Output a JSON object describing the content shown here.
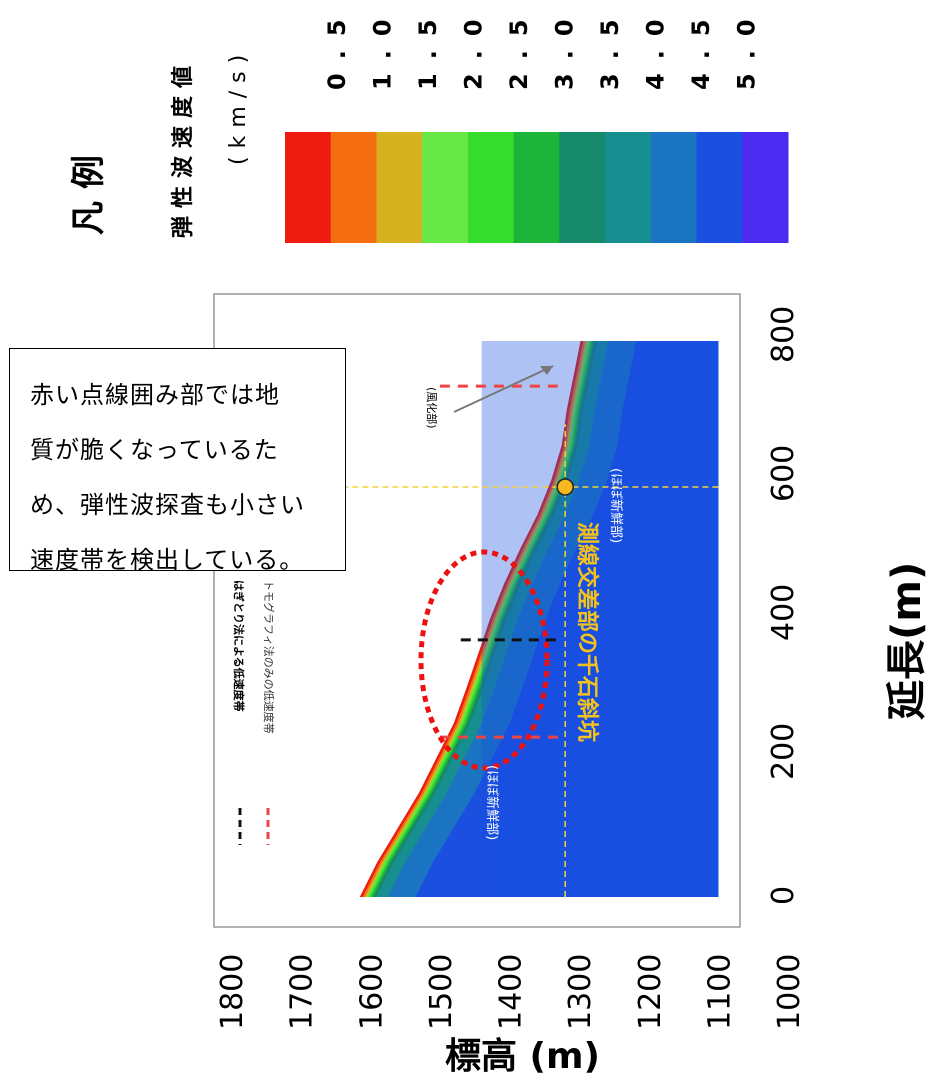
{
  "legend": {
    "title": "凡 例",
    "label": "弾性波速度値",
    "unit": "(km/s)",
    "values": [
      "0.5",
      "1.0",
      "1.5",
      "2.0",
      "2.5",
      "3.0",
      "3.5",
      "4.0",
      "4.5",
      "5.0"
    ],
    "colors": [
      "#ee1c10",
      "#f46d10",
      "#d7b220",
      "#66e847",
      "#35dc2c",
      "#1cb53a",
      "#17896b",
      "#178f90",
      "#1b74c2",
      "#1a4fe0",
      "#4b2bef"
    ]
  },
  "note": {
    "lines": [
      "赤い点線囲み部では地",
      "質が脆くなっているた",
      "め、弾性波探査も小さい",
      "速度帯を検出している。"
    ]
  },
  "plot_labels": {
    "black_dash": "はぎとり法による低速度帯",
    "red_dash": "トモグラフィ法のみの低速度帯",
    "weathered": "(風化部)",
    "fresh_left": "(ほぼ新鮮部)",
    "fresh_right": "(ほぼ新鮮部)",
    "crossing": "測線交差部の千石斜坑"
  },
  "chart_data": {
    "type": "area",
    "xlabel": "延長(m)",
    "ylabel": "標高 (m)",
    "xlim": [
      0,
      800
    ],
    "ylim": [
      1000,
      1800
    ],
    "x_ticks": [
      0,
      200,
      400,
      600,
      800
    ],
    "y_ticks": [
      1000,
      1100,
      1200,
      1300,
      1400,
      1500,
      1600,
      1700,
      1800
    ],
    "surface": {
      "x": [
        0,
        50,
        100,
        150,
        200,
        250,
        300,
        350,
        400,
        450,
        500,
        550,
        600,
        650,
        700,
        750,
        800
      ],
      "y": [
        1615,
        1590,
        1560,
        1530,
        1505,
        1480,
        1462,
        1445,
        1428,
        1408,
        1385,
        1360,
        1340,
        1325,
        1318,
        1308,
        1298
      ]
    },
    "crossing_point": {
      "x": 590,
      "y": 1320
    },
    "red_dash_x": [
      230,
      735
    ],
    "black_dash_x": [
      370
    ]
  }
}
